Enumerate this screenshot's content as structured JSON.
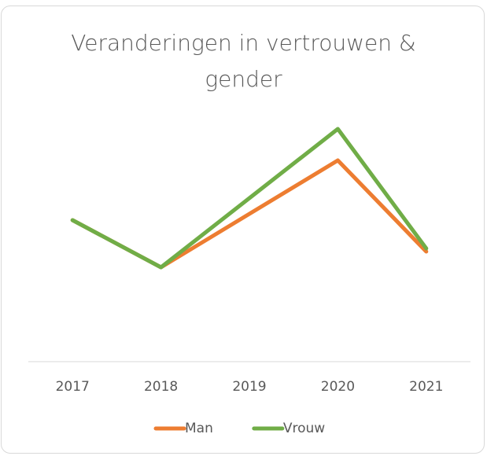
{
  "chart_data": {
    "type": "line",
    "title": "Veranderingen in vertrouwen & gender",
    "categories": [
      "2017",
      "2018",
      "2019",
      "2020",
      "2021"
    ],
    "series": [
      {
        "name": "Man",
        "color": "#ed7d31",
        "values": [
          4.5,
          3.0,
          4.7,
          6.4,
          3.5
        ]
      },
      {
        "name": "Vrouw",
        "color": "#70ad47",
        "values": [
          4.5,
          3.0,
          5.2,
          7.4,
          3.6
        ]
      }
    ],
    "ylim": [
      0,
      8
    ],
    "legend": "bottom"
  }
}
